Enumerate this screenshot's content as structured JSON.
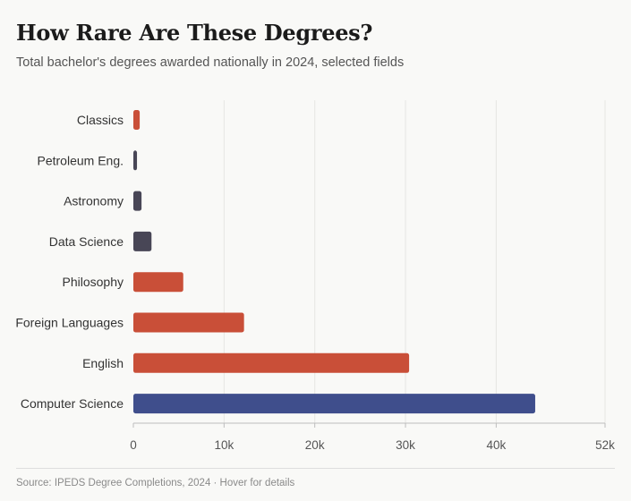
{
  "header": {
    "title": "How Rare Are These Degrees?",
    "subtitle": "Total bachelor's degrees awarded nationally in 2024, selected fields"
  },
  "footer": {
    "text": "Source: IPEDS Degree Completions, 2024 · Hover for details"
  },
  "colors": {
    "humanities": "#c94f38",
    "stem": "#484656",
    "computer_science": "#3f4e8c",
    "grid": "#e6e6e3",
    "axis": "#bdbdbd",
    "background": "#f9f9f7"
  },
  "chart_data": {
    "type": "bar",
    "orientation": "horizontal",
    "title": "How Rare Are These Degrees?",
    "subtitle": "Total bachelor's degrees awarded nationally in 2024, selected fields",
    "categories": [
      "Classics",
      "Petroleum Eng.",
      "Astronomy",
      "Data Science",
      "Philosophy",
      "Foreign Languages",
      "English",
      "Computer Science"
    ],
    "values": [
      700,
      400,
      900,
      2000,
      5500,
      12200,
      30400,
      44300
    ],
    "bar_colors": [
      "#c94f38",
      "#484656",
      "#484656",
      "#484656",
      "#c94f38",
      "#c94f38",
      "#c94f38",
      "#3f4e8c"
    ],
    "xlim": [
      0,
      52000
    ],
    "xticks": [
      0,
      10000,
      20000,
      30000,
      40000,
      52000
    ],
    "xtick_labels": [
      "0",
      "10k",
      "20k",
      "30k",
      "40k",
      "52k"
    ],
    "xlabel": "",
    "ylabel": "",
    "grid": "vertical",
    "legend": "none"
  }
}
